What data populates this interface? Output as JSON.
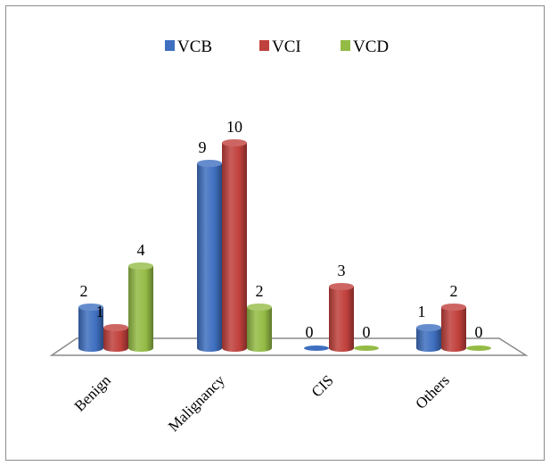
{
  "chart_data": {
    "type": "bar",
    "categories": [
      "Benign",
      "Malignancy",
      "CIS",
      "Others"
    ],
    "series": [
      {
        "name": "VCB",
        "values": [
          2,
          9,
          0,
          1
        ],
        "color": "#3f6fc0"
      },
      {
        "name": "VCI",
        "values": [
          1,
          10,
          3,
          2
        ],
        "color": "#c0403c"
      },
      {
        "name": "VCD",
        "values": [
          4,
          2,
          0,
          0
        ],
        "color": "#94bb45"
      }
    ],
    "title": "",
    "xlabel": "",
    "ylabel": "",
    "ylim": [
      0,
      10
    ],
    "grid": false,
    "legend_position": "top",
    "style": "3d-cylinder",
    "data_labels": true
  }
}
